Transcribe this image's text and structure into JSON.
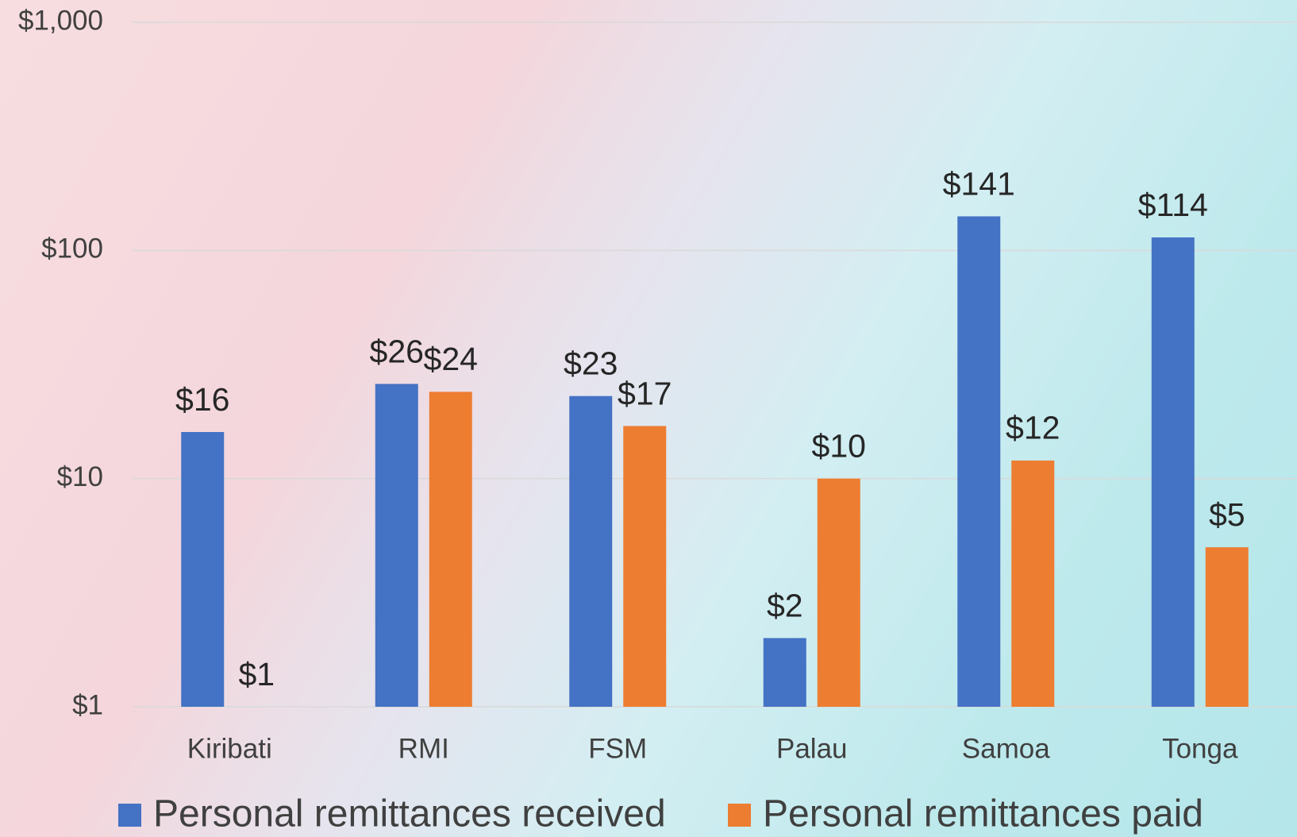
{
  "chart_data": {
    "type": "bar",
    "log_scale": true,
    "grid": true,
    "categories": [
      "Kiribati",
      "RMI",
      "FSM",
      "Palau",
      "Samoa",
      "Tonga"
    ],
    "series": [
      {
        "name": "Personal remittances received",
        "color": "#4472c4",
        "values": [
          16,
          26,
          23,
          2,
          141,
          114
        ],
        "value_labels": [
          "$16",
          "$26",
          "$23",
          "$2",
          "$141",
          "$114"
        ]
      },
      {
        "name": "Personal remittances paid",
        "color": "#ed7d31",
        "values": [
          1,
          24,
          17,
          10,
          12,
          5
        ],
        "value_labels": [
          "$1",
          "$24",
          "$17",
          "$10",
          "$12",
          "$5"
        ]
      }
    ],
    "ylim": [
      1,
      1000
    ],
    "yticks": [
      {
        "value": 1,
        "label": "$1"
      },
      {
        "value": 10,
        "label": "$10"
      },
      {
        "value": 100,
        "label": "$100"
      },
      {
        "value": 1000,
        "label": "$1,000"
      }
    ],
    "legend": "bottom"
  }
}
